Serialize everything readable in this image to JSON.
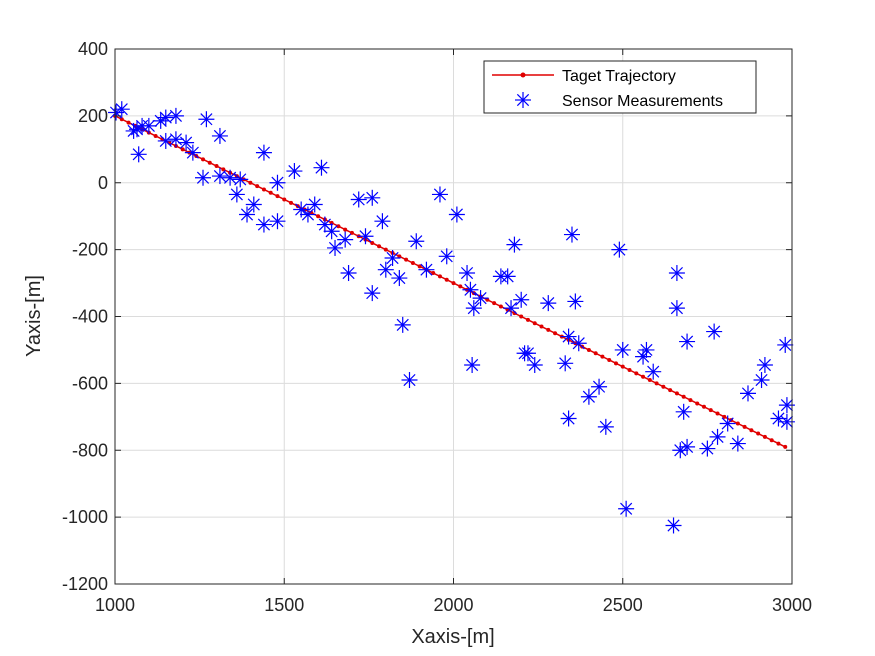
{
  "chart_data": {
    "type": "scatter",
    "title": "",
    "xlabel": "Xaxis-[m]",
    "ylabel": "Yaxis-[m]",
    "xlim": [
      1000,
      3000
    ],
    "ylim": [
      -1200,
      400
    ],
    "xticks": [
      1000,
      1500,
      2000,
      2500,
      3000
    ],
    "yticks": [
      -1200,
      -1000,
      -800,
      -600,
      -400,
      -200,
      0,
      200,
      400
    ],
    "grid": true,
    "legend_position": "top-right",
    "series": [
      {
        "name": "Taget Trajectory",
        "style": "line-with-dot-markers",
        "color": "#e00000",
        "x_start": 1000,
        "x_end": 2980,
        "y_start": 200,
        "y_end": -790,
        "n_points": 100
      },
      {
        "name": "Sensor Measurements",
        "style": "asterisk-markers",
        "color": "#0000ff",
        "points": [
          [
            1003,
            210
          ],
          [
            1020,
            220
          ],
          [
            1055,
            155
          ],
          [
            1065,
            160
          ],
          [
            1080,
            170
          ],
          [
            1070,
            85
          ],
          [
            1100,
            170
          ],
          [
            1135,
            185
          ],
          [
            1150,
            195
          ],
          [
            1180,
            200
          ],
          [
            1150,
            125
          ],
          [
            1180,
            130
          ],
          [
            1210,
            120
          ],
          [
            1230,
            90
          ],
          [
            1270,
            190
          ],
          [
            1260,
            15
          ],
          [
            1310,
            140
          ],
          [
            1310,
            20
          ],
          [
            1340,
            15
          ],
          [
            1360,
            -35
          ],
          [
            1370,
            10
          ],
          [
            1390,
            -95
          ],
          [
            1410,
            -65
          ],
          [
            1440,
            90
          ],
          [
            1440,
            -125
          ],
          [
            1480,
            0
          ],
          [
            1480,
            -115
          ],
          [
            1530,
            35
          ],
          [
            1550,
            -80
          ],
          [
            1570,
            -95
          ],
          [
            1590,
            -65
          ],
          [
            1610,
            45
          ],
          [
            1620,
            -125
          ],
          [
            1640,
            -145
          ],
          [
            1650,
            -195
          ],
          [
            1680,
            -170
          ],
          [
            1690,
            -270
          ],
          [
            1720,
            -50
          ],
          [
            1740,
            -160
          ],
          [
            1760,
            -45
          ],
          [
            1760,
            -330
          ],
          [
            1790,
            -115
          ],
          [
            1800,
            -260
          ],
          [
            1820,
            -225
          ],
          [
            1840,
            -285
          ],
          [
            1850,
            -425
          ],
          [
            1870,
            -590
          ],
          [
            1890,
            -175
          ],
          [
            1920,
            -260
          ],
          [
            1960,
            -35
          ],
          [
            1980,
            -220
          ],
          [
            2010,
            -95
          ],
          [
            2040,
            -270
          ],
          [
            2050,
            -320
          ],
          [
            2055,
            -545
          ],
          [
            2060,
            -375
          ],
          [
            2080,
            -345
          ],
          [
            2140,
            -280
          ],
          [
            2160,
            -280
          ],
          [
            2170,
            -375
          ],
          [
            2180,
            -185
          ],
          [
            2200,
            -350
          ],
          [
            2210,
            -510
          ],
          [
            2220,
            -510
          ],
          [
            2240,
            -545
          ],
          [
            2280,
            -360
          ],
          [
            2330,
            -540
          ],
          [
            2340,
            -460
          ],
          [
            2340,
            -705
          ],
          [
            2350,
            -155
          ],
          [
            2360,
            -355
          ],
          [
            2370,
            -480
          ],
          [
            2400,
            -640
          ],
          [
            2430,
            -610
          ],
          [
            2450,
            -730
          ],
          [
            2490,
            -200
          ],
          [
            2500,
            -500
          ],
          [
            2510,
            -975
          ],
          [
            2560,
            -520
          ],
          [
            2570,
            -500
          ],
          [
            2590,
            -565
          ],
          [
            2650,
            -1025
          ],
          [
            2660,
            -270
          ],
          [
            2660,
            -375
          ],
          [
            2670,
            -800
          ],
          [
            2680,
            -685
          ],
          [
            2690,
            -475
          ],
          [
            2690,
            -790
          ],
          [
            2750,
            -795
          ],
          [
            2770,
            -445
          ],
          [
            2780,
            -760
          ],
          [
            2810,
            -720
          ],
          [
            2840,
            -780
          ],
          [
            2870,
            -630
          ],
          [
            2910,
            -590
          ],
          [
            2920,
            -545
          ],
          [
            2960,
            -705
          ],
          [
            2980,
            -485
          ],
          [
            2985,
            -665
          ],
          [
            2985,
            -715
          ]
        ]
      }
    ]
  }
}
